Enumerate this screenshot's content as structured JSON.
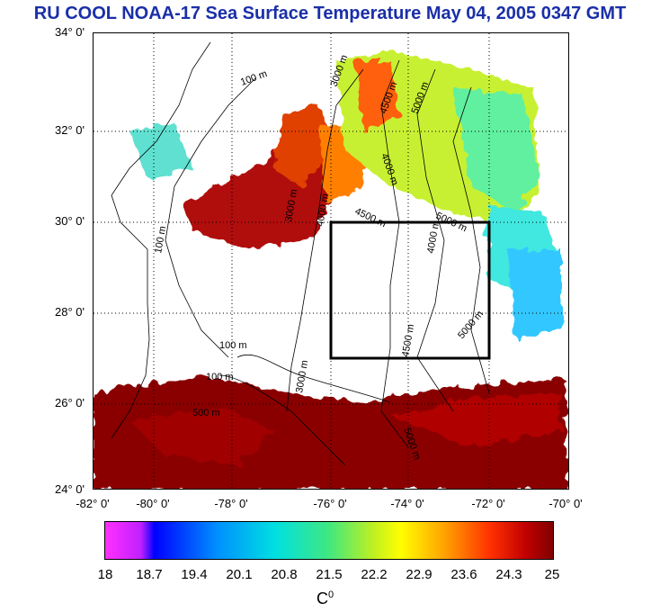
{
  "title": "RU COOL  NOAA-17 Sea Surface Temperature May 04, 2005 0347 GMT",
  "y_axis_labels": [
    "34° 0'",
    "32° 0'",
    "30° 0'",
    "28° 0'",
    "26° 0'",
    "24° 0'"
  ],
  "x_axis_labels": [
    "-82° 0'",
    "-80° 0'",
    "-78° 0'",
    "-76° 0'",
    "-74° 0'",
    "-72° 0'",
    "-70° 0'"
  ],
  "colorbar": {
    "labels": [
      "18",
      "18.7",
      "19.4",
      "20.1",
      "20.8",
      "21.5",
      "22.2",
      "22.9",
      "23.6",
      "24.3",
      "25"
    ],
    "colors": [
      "#ff30ff",
      "#0000ff",
      "#0090ff",
      "#00e0e0",
      "#40e880",
      "#c0f020",
      "#ffff00",
      "#ffa000",
      "#ff3000",
      "#c00000",
      "#800000"
    ],
    "unit": "C",
    "unit_sup": "0"
  },
  "contour_labels": [
    "100 m",
    "100 m",
    "100 m",
    "100 m",
    "3000 m",
    "3000 m",
    "3000 m",
    "4000 m",
    "4000 m",
    "4500 m",
    "4500 m",
    "4500 m",
    "5000 m",
    "5000 m",
    "5000 m",
    "5000 m",
    "500 m",
    "4000 m"
  ],
  "box": {
    "lon_min": -76,
    "lon_max": -72,
    "lat_min": 27,
    "lat_max": 30
  },
  "extent": {
    "lon_min": -82,
    "lon_max": -70,
    "lat_min": 24,
    "lat_max": 34
  },
  "colors": {
    "title": "#1a2fa8",
    "land_line": "#000000",
    "grid": "#000000"
  }
}
